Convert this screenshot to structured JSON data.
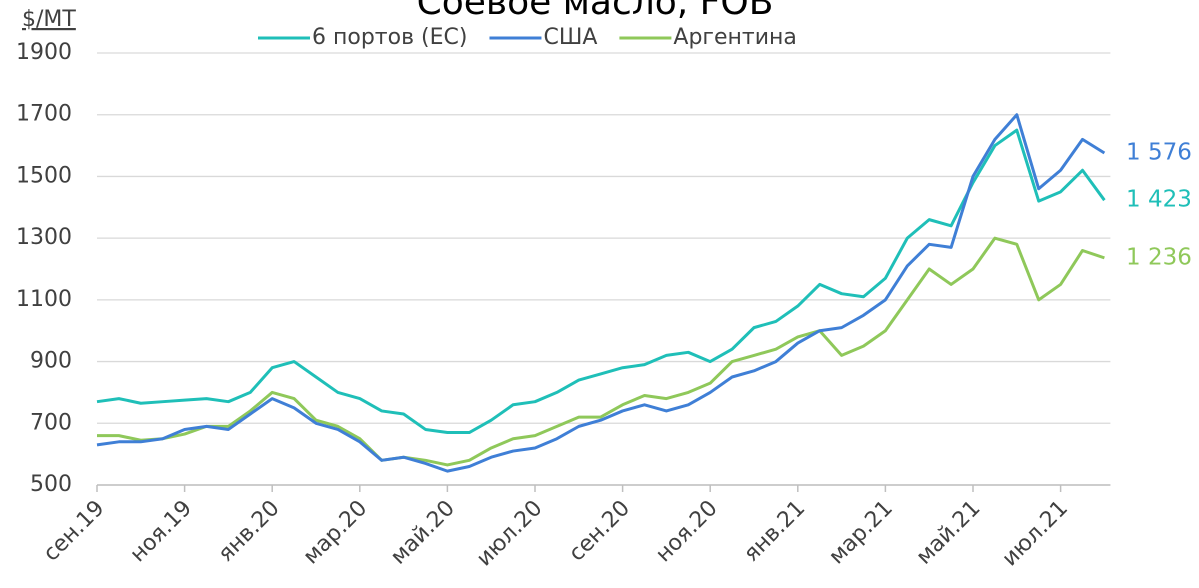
{
  "chart_data": {
    "type": "line",
    "title": "Соевое масло, FOB",
    "y_label": "$/MT",
    "categories": [
      "сен.19",
      null,
      null,
      null,
      "ноя.19",
      null,
      null,
      null,
      "янв.20",
      null,
      null,
      null,
      "мар.20",
      null,
      null,
      null,
      "май.20",
      null,
      null,
      null,
      "июл.20",
      null,
      null,
      null,
      "сен.20",
      null,
      null,
      null,
      "ноя.20",
      null,
      null,
      null,
      "янв.21",
      null,
      null,
      null,
      "мар.21",
      null,
      null,
      null,
      "май.21",
      null,
      null,
      null,
      "июл.21",
      null,
      null
    ],
    "series": [
      {
        "name": "6 портов (ЕС)",
        "color": "#1fbfb8",
        "values": [
          770,
          780,
          765,
          770,
          775,
          780,
          770,
          800,
          880,
          900,
          850,
          800,
          780,
          740,
          730,
          680,
          670,
          670,
          710,
          760,
          770,
          800,
          840,
          860,
          880,
          890,
          920,
          930,
          900,
          940,
          1010,
          1030,
          1080,
          1150,
          1120,
          1110,
          1170,
          1300,
          1360,
          1340,
          1480,
          1600,
          1650,
          1420,
          1450,
          1520,
          1423
        ]
      },
      {
        "name": "США",
        "color": "#3f7fd6",
        "values": [
          630,
          640,
          640,
          650,
          680,
          690,
          680,
          730,
          780,
          750,
          700,
          680,
          640,
          580,
          590,
          570,
          545,
          560,
          590,
          610,
          620,
          650,
          690,
          710,
          740,
          760,
          740,
          760,
          800,
          850,
          870,
          900,
          960,
          1000,
          1010,
          1050,
          1100,
          1210,
          1280,
          1270,
          1500,
          1620,
          1700,
          1460,
          1520,
          1620,
          1576
        ]
      },
      {
        "name": "Аргентина",
        "color": "#8fc85a",
        "values": [
          660,
          660,
          645,
          650,
          665,
          690,
          690,
          740,
          800,
          780,
          710,
          690,
          650,
          580,
          590,
          580,
          565,
          580,
          620,
          650,
          660,
          690,
          720,
          720,
          760,
          790,
          780,
          800,
          830,
          900,
          920,
          940,
          980,
          1000,
          920,
          950,
          1000,
          1100,
          1200,
          1150,
          1200,
          1300,
          1280,
          1100,
          1150,
          1260,
          1236
        ]
      }
    ],
    "annotations": [
      {
        "label": "1 576",
        "value": 1576,
        "color": "#3f7fd6"
      },
      {
        "label": "1 423",
        "value": 1423,
        "color": "#1fbfb8"
      },
      {
        "label": "1 236",
        "value": 1236,
        "color": "#8fc85a"
      }
    ],
    "ylim": [
      500,
      1900
    ],
    "yticks": [
      500,
      700,
      900,
      1100,
      1300,
      1500,
      1700,
      1900
    ],
    "grid": true
  }
}
